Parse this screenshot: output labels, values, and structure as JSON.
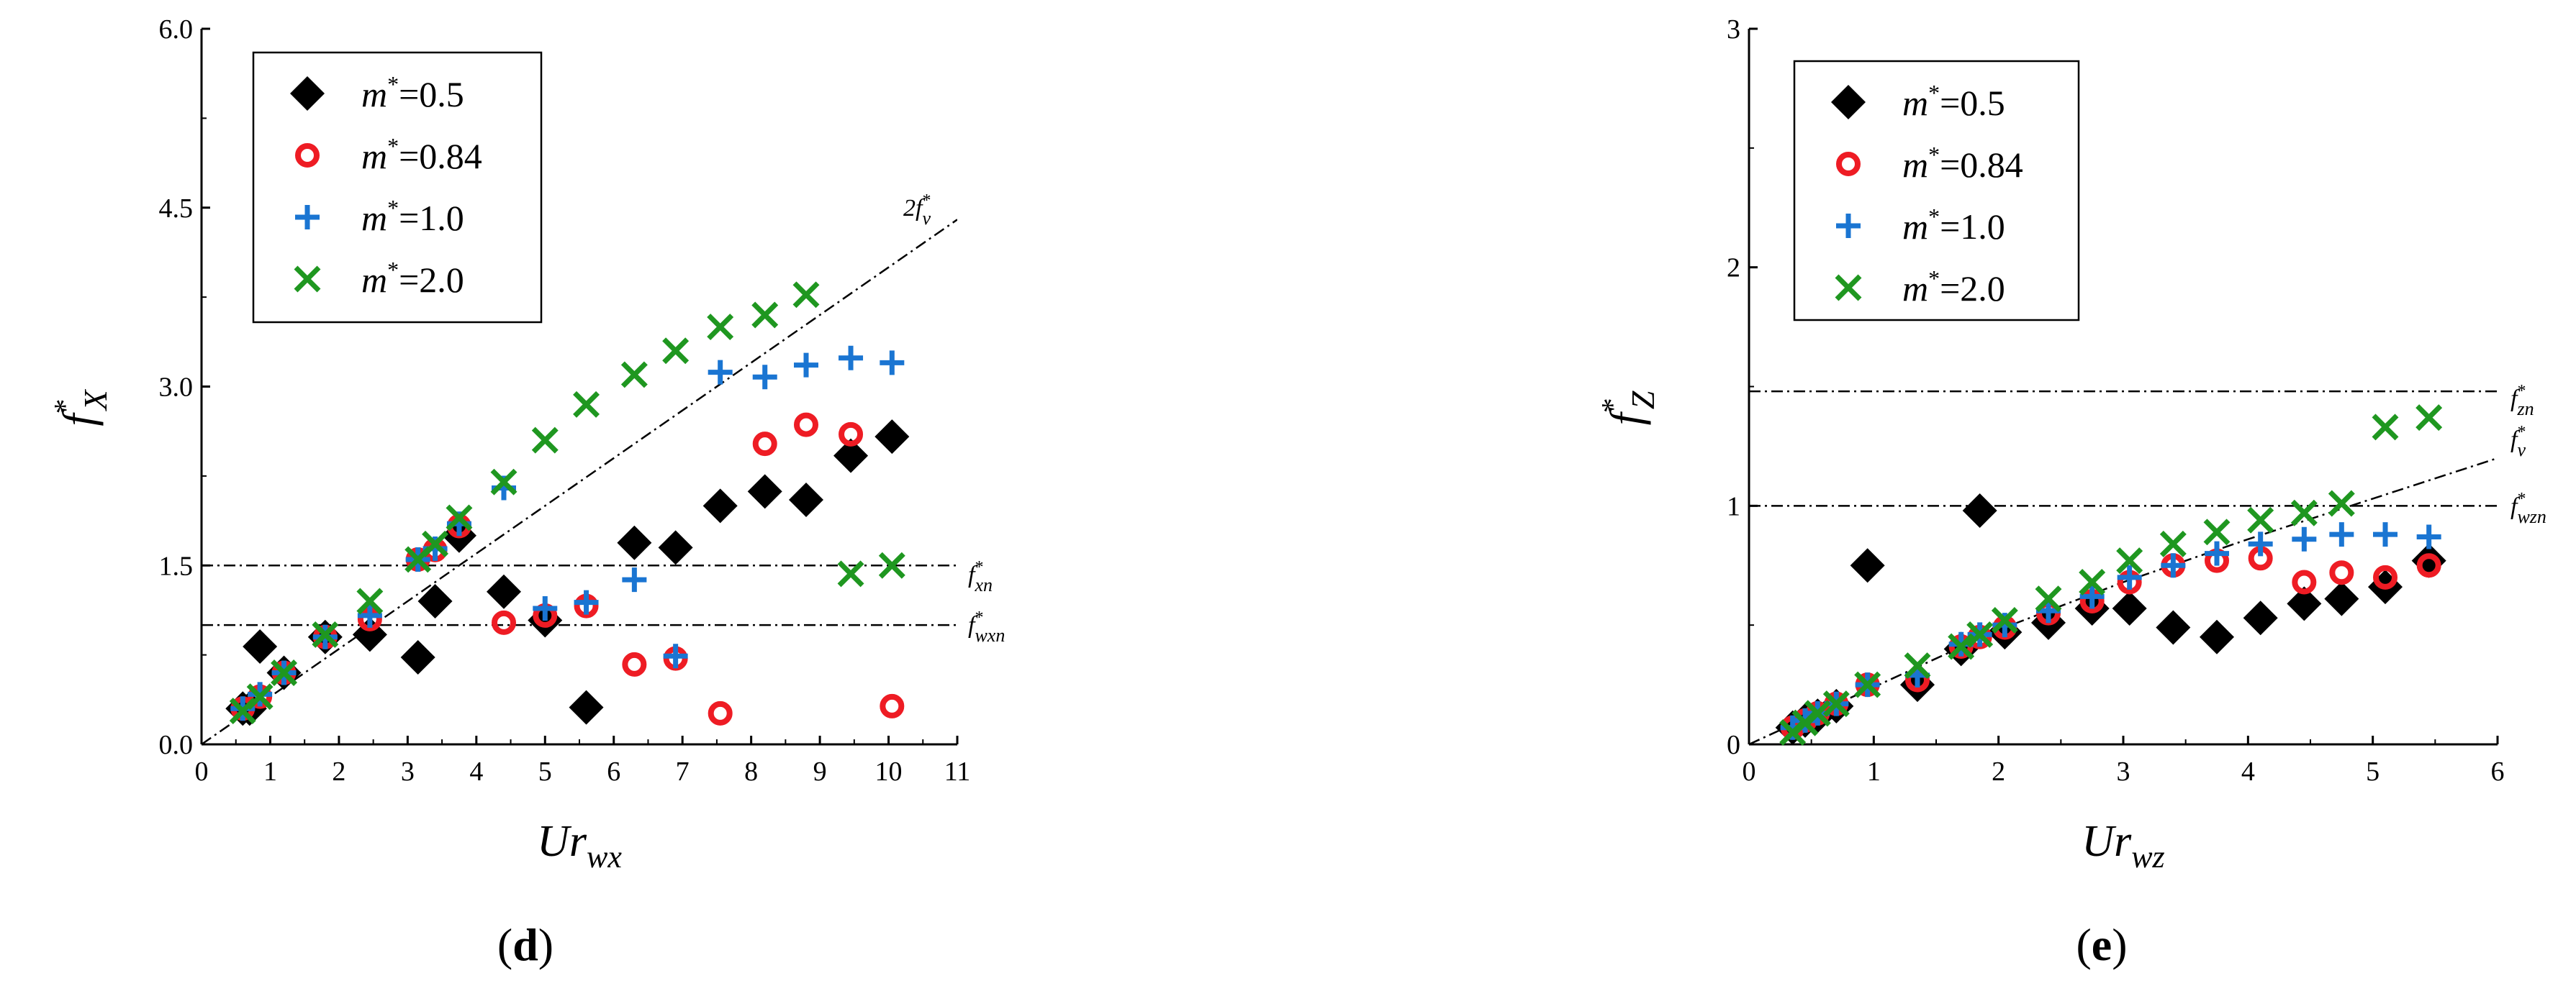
{
  "chart_data": [
    {
      "panel_label": "d",
      "type": "scatter",
      "xlabel": "Ur",
      "xlabel_sub": "wx",
      "ylabel": "f",
      "ylabel_sub": "X",
      "ylabel_sup": "*",
      "xlim": [
        0,
        11
      ],
      "ylim": [
        0,
        6
      ],
      "xticks": [
        "0",
        "1",
        "2",
        "3",
        "4",
        "5",
        "6",
        "7",
        "8",
        "9",
        "10",
        "11"
      ],
      "yticks": [
        "0.0",
        "1.5",
        "3.0",
        "4.5",
        "6.0"
      ],
      "legend_position": "top-left",
      "series": [
        {
          "name": "m*=0.5",
          "marker": "diamond",
          "color": "#000000",
          "x": [
            0.6,
            0.7,
            0.85,
            1.2,
            1.8,
            2.45,
            3.15,
            3.4,
            3.75,
            4.4,
            5.0,
            5.6,
            6.3,
            6.9,
            7.55,
            8.2,
            8.8,
            9.45,
            10.05
          ],
          "y": [
            0.3,
            0.3,
            0.82,
            0.6,
            0.9,
            0.92,
            0.73,
            1.2,
            1.75,
            1.28,
            1.04,
            0.31,
            1.69,
            1.65,
            2.0,
            2.12,
            2.05,
            2.42,
            2.58
          ]
        },
        {
          "name": "m*=0.84",
          "marker": "circle",
          "color": "#ee1c24",
          "x": [
            0.6,
            0.85,
            1.2,
            1.8,
            2.45,
            3.15,
            3.4,
            3.75,
            4.4,
            5.0,
            5.6,
            6.3,
            6.9,
            7.55,
            8.2,
            8.8,
            9.45,
            10.05
          ],
          "y": [
            0.3,
            0.4,
            0.6,
            0.9,
            1.05,
            1.55,
            1.63,
            1.83,
            1.02,
            1.08,
            1.16,
            0.67,
            0.72,
            0.26,
            2.52,
            2.68,
            2.6,
            0.32
          ]
        },
        {
          "name": "m*=1.0",
          "marker": "plus",
          "color": "#1a75d2",
          "x": [
            0.6,
            0.85,
            1.2,
            1.8,
            2.45,
            3.15,
            3.4,
            3.75,
            4.4,
            5.0,
            5.6,
            6.3,
            6.9,
            7.55,
            8.2,
            8.8,
            9.45,
            10.05
          ],
          "y": [
            0.3,
            0.42,
            0.6,
            0.9,
            1.08,
            1.55,
            1.64,
            1.85,
            2.15,
            1.14,
            1.19,
            1.38,
            0.74,
            3.12,
            3.08,
            3.18,
            3.24,
            3.2
          ]
        },
        {
          "name": "m*=2.0",
          "marker": "x",
          "color": "#1f9720",
          "x": [
            0.6,
            0.85,
            1.2,
            1.8,
            2.45,
            3.15,
            3.4,
            3.75,
            4.4,
            5.0,
            5.6,
            6.3,
            6.9,
            7.55,
            8.2,
            8.8,
            9.45,
            10.05
          ],
          "y": [
            0.28,
            0.4,
            0.6,
            0.92,
            1.2,
            1.55,
            1.68,
            1.9,
            2.2,
            2.55,
            2.85,
            3.1,
            3.3,
            3.5,
            3.6,
            3.77,
            1.43,
            1.5
          ]
        }
      ],
      "reference_lines": [
        {
          "label": "2f",
          "label_sub": "v",
          "label_sup": "*",
          "kind": "line",
          "x": [
            0,
            11
          ],
          "y": [
            0,
            4.4
          ]
        },
        {
          "label": "f",
          "label_sub": "xn",
          "label_sup": "*",
          "kind": "hline",
          "y": 1.5
        },
        {
          "label": "f",
          "label_sub": "wxn",
          "label_sup": "*",
          "kind": "hline",
          "y": 1.0
        }
      ]
    },
    {
      "panel_label": "e",
      "type": "scatter",
      "xlabel": "Ur",
      "xlabel_sub": "wz",
      "ylabel": "f",
      "ylabel_sub": "Z",
      "ylabel_sup": "*",
      "xlim": [
        0,
        6
      ],
      "ylim": [
        0,
        3
      ],
      "xticks": [
        "0",
        "1",
        "2",
        "3",
        "4",
        "5",
        "6"
      ],
      "yticks": [
        "0",
        "1",
        "2",
        "3"
      ],
      "legend_position": "top-left",
      "series": [
        {
          "name": "m*=0.5",
          "marker": "diamond",
          "color": "#000000",
          "x": [
            0.35,
            0.45,
            0.55,
            0.7,
            0.95,
            1.35,
            1.7,
            1.85,
            2.05,
            2.4,
            2.75,
            3.05,
            3.4,
            3.75,
            4.1,
            4.45,
            4.75,
            5.1,
            5.45
          ],
          "y": [
            0.07,
            0.1,
            0.12,
            0.16,
            0.75,
            0.25,
            0.4,
            0.98,
            0.47,
            0.51,
            0.57,
            0.57,
            0.49,
            0.45,
            0.53,
            0.59,
            0.61,
            0.66,
            0.77
          ]
        },
        {
          "name": "m*=0.84",
          "marker": "circle",
          "color": "#ee1c24",
          "x": [
            0.35,
            0.45,
            0.55,
            0.7,
            0.95,
            1.35,
            1.7,
            1.85,
            2.05,
            2.4,
            2.75,
            3.05,
            3.4,
            3.75,
            4.1,
            4.45,
            4.75,
            5.1,
            5.45
          ],
          "y": [
            0.07,
            0.1,
            0.13,
            0.17,
            0.25,
            0.27,
            0.41,
            0.45,
            0.49,
            0.55,
            0.6,
            0.68,
            0.75,
            0.77,
            0.78,
            0.68,
            0.72,
            0.7,
            0.75
          ]
        },
        {
          "name": "m*=1.0",
          "marker": "plus",
          "color": "#1a75d2",
          "x": [
            0.35,
            0.45,
            0.55,
            0.7,
            0.95,
            1.35,
            1.7,
            1.85,
            2.05,
            2.4,
            2.75,
            3.05,
            3.4,
            3.75,
            4.1,
            4.45,
            4.75,
            5.1,
            5.45
          ],
          "y": [
            0.07,
            0.1,
            0.13,
            0.17,
            0.25,
            0.29,
            0.42,
            0.46,
            0.5,
            0.56,
            0.62,
            0.7,
            0.75,
            0.8,
            0.84,
            0.86,
            0.88,
            0.88,
            0.87
          ]
        },
        {
          "name": "m*=2.0",
          "marker": "x",
          "color": "#1f9720",
          "x": [
            0.35,
            0.45,
            0.55,
            0.7,
            0.95,
            1.35,
            1.7,
            1.85,
            2.05,
            2.4,
            2.75,
            3.05,
            3.4,
            3.75,
            4.1,
            4.45,
            4.75,
            5.1,
            5.45
          ],
          "y": [
            0.05,
            0.09,
            0.13,
            0.17,
            0.25,
            0.33,
            0.41,
            0.46,
            0.52,
            0.61,
            0.68,
            0.77,
            0.84,
            0.89,
            0.94,
            0.97,
            1.01,
            1.33,
            1.37
          ]
        }
      ],
      "reference_lines": [
        {
          "label": "f",
          "label_sub": "zn",
          "label_sup": "*",
          "kind": "hline",
          "y": 1.48
        },
        {
          "label": "f",
          "label_sub": "v",
          "label_sup": "*",
          "kind": "curve",
          "x": [
            0,
            1,
            2,
            3,
            4,
            5,
            6
          ],
          "y": [
            0,
            0.24,
            0.48,
            0.68,
            0.86,
            1.03,
            1.2
          ]
        },
        {
          "label": "f",
          "label_sub": "wzn",
          "label_sup": "*",
          "kind": "hline",
          "y": 1.0
        }
      ]
    }
  ]
}
